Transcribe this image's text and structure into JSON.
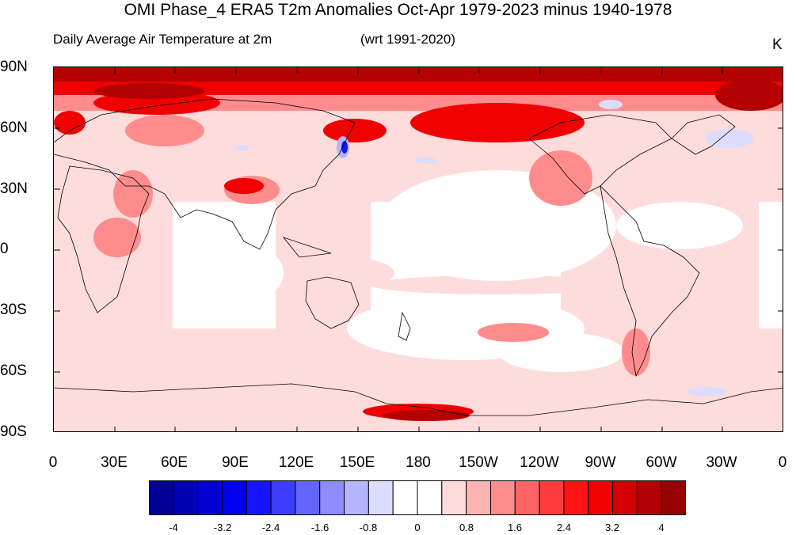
{
  "title": "OMI Phase_4 ERA5 T2m Anomalies Oct-Apr 1979-2023 minus 1940-1978",
  "subtitle_left": "Daily Average Air Temperature at 2m",
  "subtitle_right": "(wrt 1991-2020)",
  "units": "K",
  "lat_labels": [
    "90N",
    "60N",
    "30N",
    "0",
    "30S",
    "60S",
    "90S"
  ],
  "lon_labels": [
    "0",
    "30E",
    "60E",
    "90E",
    "120E",
    "150E",
    "180",
    "150W",
    "120W",
    "90W",
    "60W",
    "30W",
    "0"
  ],
  "colorbar": {
    "labels": [
      "-4",
      "-3.2",
      "-2.4",
      "-1.6",
      "-0.8",
      "0",
      "0.8",
      "1.6",
      "2.4",
      "3.2",
      "4"
    ],
    "colors": [
      "#000096",
      "#0000b4",
      "#0000d2",
      "#0000f0",
      "#1414ff",
      "#3c3cff",
      "#6464ff",
      "#8c8cff",
      "#b4b4ff",
      "#dcdcff",
      "#ffffff",
      "#ffffff",
      "#ffdcdc",
      "#ffb4b4",
      "#ff8c8c",
      "#ff6464",
      "#ff3c3c",
      "#ff1414",
      "#f00000",
      "#d20000",
      "#b40000",
      "#960000"
    ]
  },
  "map": {
    "projection": "cylindrical equidistant",
    "lon_range": [
      0,
      360
    ],
    "lat_range": [
      -90,
      90
    ],
    "field": "T2m anomaly (K)",
    "colors": {
      "land_outline": "#000000",
      "weak_positive": "#ffdcdc",
      "moderate_positive": "#ff8c8c",
      "strong_positive": "#f00000",
      "very_strong_positive": "#b40000",
      "weak_negative": "#dcdcff",
      "strong_negative": "#1414ff"
    }
  }
}
